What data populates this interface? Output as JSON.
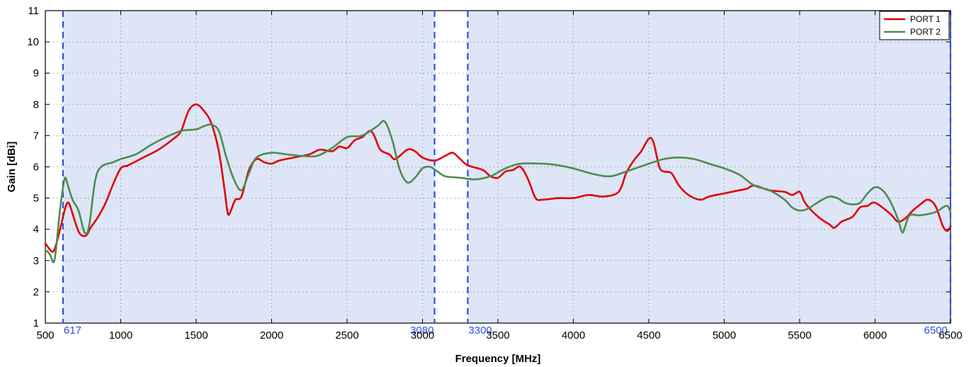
{
  "chart_data": {
    "type": "line",
    "title": "",
    "xlabel": "Frequency [MHz]",
    "ylabel": "Gain [dBi]",
    "xlim": [
      500,
      6500
    ],
    "ylim": [
      1,
      11
    ],
    "x_ticks": [
      500,
      1000,
      1500,
      2000,
      2500,
      3000,
      3500,
      4000,
      4500,
      5000,
      5500,
      6000,
      6500
    ],
    "y_ticks": [
      1,
      2,
      3,
      4,
      5,
      6,
      7,
      8,
      9,
      10,
      11
    ],
    "grid": true,
    "legend_position": "top-right",
    "shaded_bands": [
      [
        617,
        3080
      ],
      [
        3300,
        6500
      ]
    ],
    "band_color": "#dde5f7",
    "markers": [
      {
        "x": 617,
        "label": "617"
      },
      {
        "x": 3080,
        "label": "3080"
      },
      {
        "x": 3300,
        "label": "3300"
      },
      {
        "x": 6500,
        "label": "6500"
      }
    ],
    "marker_color": "#2e50e0",
    "series": [
      {
        "name": "PORT 1",
        "color": "#e00000",
        "points": [
          [
            500,
            3.55
          ],
          [
            540,
            3.3
          ],
          [
            560,
            3.35
          ],
          [
            590,
            3.85
          ],
          [
            617,
            4.4
          ],
          [
            640,
            4.8
          ],
          [
            660,
            4.8
          ],
          [
            700,
            4.2
          ],
          [
            730,
            3.85
          ],
          [
            770,
            3.8
          ],
          [
            800,
            4.05
          ],
          [
            850,
            4.4
          ],
          [
            900,
            4.85
          ],
          [
            950,
            5.45
          ],
          [
            1000,
            5.95
          ],
          [
            1050,
            6.05
          ],
          [
            1150,
            6.3
          ],
          [
            1250,
            6.55
          ],
          [
            1350,
            6.9
          ],
          [
            1400,
            7.15
          ],
          [
            1450,
            7.8
          ],
          [
            1500,
            8.0
          ],
          [
            1550,
            7.8
          ],
          [
            1600,
            7.4
          ],
          [
            1650,
            6.5
          ],
          [
            1690,
            5.2
          ],
          [
            1710,
            4.5
          ],
          [
            1730,
            4.6
          ],
          [
            1760,
            4.95
          ],
          [
            1800,
            5.05
          ],
          [
            1850,
            5.9
          ],
          [
            1900,
            6.25
          ],
          [
            1950,
            6.15
          ],
          [
            2000,
            6.1
          ],
          [
            2050,
            6.2
          ],
          [
            2150,
            6.3
          ],
          [
            2250,
            6.4
          ],
          [
            2320,
            6.55
          ],
          [
            2400,
            6.5
          ],
          [
            2450,
            6.65
          ],
          [
            2500,
            6.6
          ],
          [
            2550,
            6.85
          ],
          [
            2600,
            6.95
          ],
          [
            2650,
            7.15
          ],
          [
            2680,
            7.0
          ],
          [
            2720,
            6.55
          ],
          [
            2780,
            6.4
          ],
          [
            2820,
            6.25
          ],
          [
            2900,
            6.55
          ],
          [
            2950,
            6.5
          ],
          [
            3000,
            6.3
          ],
          [
            3080,
            6.2
          ],
          [
            3150,
            6.35
          ],
          [
            3200,
            6.45
          ],
          [
            3250,
            6.25
          ],
          [
            3300,
            6.05
          ],
          [
            3400,
            5.9
          ],
          [
            3450,
            5.7
          ],
          [
            3500,
            5.65
          ],
          [
            3550,
            5.85
          ],
          [
            3600,
            5.9
          ],
          [
            3650,
            6.0
          ],
          [
            3700,
            5.6
          ],
          [
            3750,
            5.0
          ],
          [
            3800,
            4.95
          ],
          [
            3900,
            5.0
          ],
          [
            4000,
            5.0
          ],
          [
            4100,
            5.1
          ],
          [
            4200,
            5.05
          ],
          [
            4300,
            5.2
          ],
          [
            4350,
            5.8
          ],
          [
            4400,
            6.2
          ],
          [
            4450,
            6.5
          ],
          [
            4500,
            6.9
          ],
          [
            4530,
            6.8
          ],
          [
            4570,
            6.0
          ],
          [
            4600,
            5.85
          ],
          [
            4650,
            5.8
          ],
          [
            4700,
            5.4
          ],
          [
            4750,
            5.15
          ],
          [
            4800,
            5.0
          ],
          [
            4850,
            4.95
          ],
          [
            4900,
            5.05
          ],
          [
            5000,
            5.15
          ],
          [
            5100,
            5.25
          ],
          [
            5150,
            5.3
          ],
          [
            5200,
            5.4
          ],
          [
            5300,
            5.25
          ],
          [
            5400,
            5.2
          ],
          [
            5450,
            5.1
          ],
          [
            5500,
            5.2
          ],
          [
            5530,
            4.9
          ],
          [
            5560,
            4.7
          ],
          [
            5600,
            4.5
          ],
          [
            5650,
            4.3
          ],
          [
            5700,
            4.15
          ],
          [
            5730,
            4.05
          ],
          [
            5780,
            4.25
          ],
          [
            5850,
            4.4
          ],
          [
            5900,
            4.7
          ],
          [
            5950,
            4.75
          ],
          [
            6000,
            4.85
          ],
          [
            6100,
            4.5
          ],
          [
            6150,
            4.25
          ],
          [
            6200,
            4.35
          ],
          [
            6250,
            4.6
          ],
          [
            6300,
            4.8
          ],
          [
            6350,
            4.95
          ],
          [
            6400,
            4.75
          ],
          [
            6450,
            4.1
          ],
          [
            6480,
            3.95
          ],
          [
            6500,
            4.1
          ]
        ]
      },
      {
        "name": "PORT 2",
        "color": "#4f8b4f",
        "points": [
          [
            500,
            3.35
          ],
          [
            530,
            3.2
          ],
          [
            560,
            3.0
          ],
          [
            590,
            4.3
          ],
          [
            610,
            5.1
          ],
          [
            630,
            5.65
          ],
          [
            650,
            5.4
          ],
          [
            680,
            4.95
          ],
          [
            720,
            4.6
          ],
          [
            760,
            3.9
          ],
          [
            790,
            4.1
          ],
          [
            830,
            5.55
          ],
          [
            870,
            6.0
          ],
          [
            950,
            6.15
          ],
          [
            1000,
            6.25
          ],
          [
            1100,
            6.4
          ],
          [
            1200,
            6.7
          ],
          [
            1300,
            6.95
          ],
          [
            1400,
            7.15
          ],
          [
            1500,
            7.2
          ],
          [
            1550,
            7.3
          ],
          [
            1600,
            7.35
          ],
          [
            1650,
            7.15
          ],
          [
            1700,
            6.3
          ],
          [
            1750,
            5.6
          ],
          [
            1800,
            5.25
          ],
          [
            1850,
            5.8
          ],
          [
            1900,
            6.3
          ],
          [
            2000,
            6.45
          ],
          [
            2100,
            6.4
          ],
          [
            2200,
            6.35
          ],
          [
            2300,
            6.35
          ],
          [
            2400,
            6.6
          ],
          [
            2500,
            6.95
          ],
          [
            2600,
            7.0
          ],
          [
            2700,
            7.3
          ],
          [
            2750,
            7.45
          ],
          [
            2800,
            6.85
          ],
          [
            2850,
            5.9
          ],
          [
            2900,
            5.5
          ],
          [
            2950,
            5.65
          ],
          [
            3000,
            5.95
          ],
          [
            3050,
            6.0
          ],
          [
            3100,
            5.85
          ],
          [
            3150,
            5.7
          ],
          [
            3250,
            5.65
          ],
          [
            3350,
            5.6
          ],
          [
            3450,
            5.7
          ],
          [
            3550,
            5.95
          ],
          [
            3650,
            6.1
          ],
          [
            3800,
            6.1
          ],
          [
            3900,
            6.05
          ],
          [
            4000,
            5.95
          ],
          [
            4150,
            5.75
          ],
          [
            4250,
            5.7
          ],
          [
            4350,
            5.85
          ],
          [
            4500,
            6.1
          ],
          [
            4600,
            6.25
          ],
          [
            4700,
            6.3
          ],
          [
            4800,
            6.25
          ],
          [
            4900,
            6.1
          ],
          [
            5000,
            5.95
          ],
          [
            5100,
            5.75
          ],
          [
            5200,
            5.4
          ],
          [
            5300,
            5.25
          ],
          [
            5400,
            4.95
          ],
          [
            5450,
            4.7
          ],
          [
            5500,
            4.6
          ],
          [
            5550,
            4.65
          ],
          [
            5600,
            4.8
          ],
          [
            5650,
            4.95
          ],
          [
            5700,
            5.05
          ],
          [
            5750,
            5.0
          ],
          [
            5800,
            4.85
          ],
          [
            5850,
            4.8
          ],
          [
            5900,
            4.85
          ],
          [
            5950,
            5.15
          ],
          [
            6000,
            5.35
          ],
          [
            6050,
            5.25
          ],
          [
            6100,
            4.9
          ],
          [
            6150,
            4.35
          ],
          [
            6180,
            3.9
          ],
          [
            6200,
            4.1
          ],
          [
            6230,
            4.45
          ],
          [
            6300,
            4.45
          ],
          [
            6400,
            4.55
          ],
          [
            6450,
            4.7
          ],
          [
            6480,
            4.75
          ],
          [
            6500,
            4.55
          ]
        ]
      }
    ]
  }
}
